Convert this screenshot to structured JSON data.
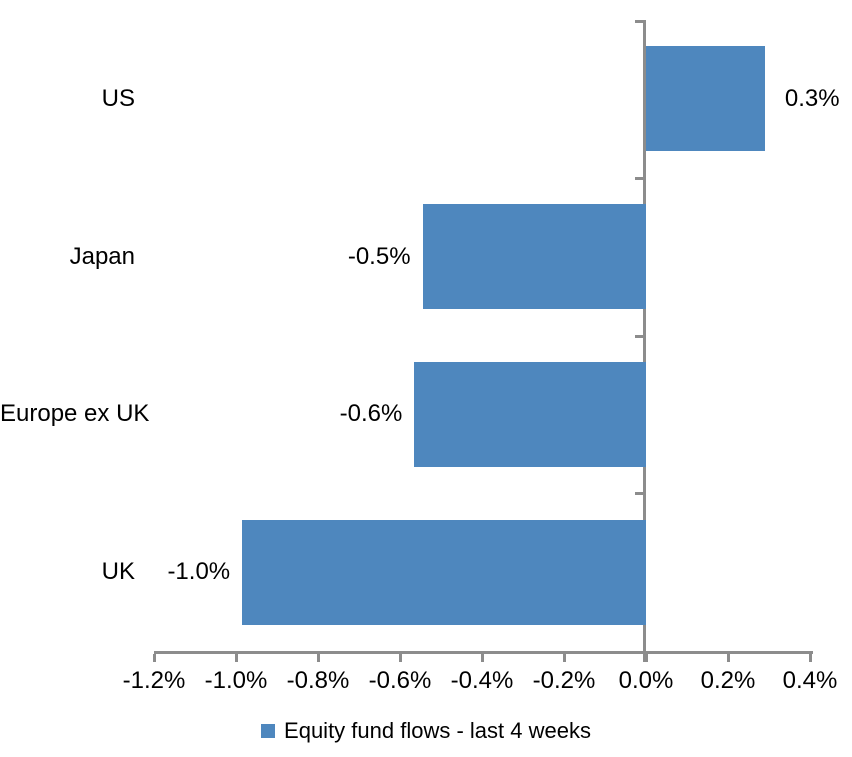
{
  "chart_data": {
    "type": "bar",
    "orientation": "horizontal",
    "title": "",
    "categories": [
      "US",
      "Japan",
      "Europe ex UK",
      "UK"
    ],
    "values": [
      0.3,
      -0.5,
      -0.6,
      -1.0
    ],
    "values_precise": [
      0.29,
      -0.545,
      -0.565,
      -0.985
    ],
    "data_labels": [
      "0.3%",
      "-0.5%",
      "-0.6%",
      "-1.0%"
    ],
    "unit": "%",
    "xlim": [
      -1.2,
      0.4
    ],
    "x_ticks": [
      -1.2,
      -1.0,
      -0.8,
      -0.6,
      -0.4,
      -0.2,
      0.0,
      0.2,
      0.4
    ],
    "x_tick_labels": [
      "-1.2%",
      "-1.0%",
      "-0.8%",
      "-0.6%",
      "-0.4%",
      "-0.2%",
      "0.0%",
      "0.2%",
      "0.4%"
    ],
    "grid": false,
    "legend_position": "bottom",
    "legend_entries": [
      "Equity fund flows - last 4 weeks"
    ]
  },
  "legend": {
    "label": "Equity fund flows - last 4 weeks",
    "marker": "legend-square-icon"
  },
  "colors": {
    "bar": "#4E87BE",
    "axis": "#8C8C8C",
    "text": "#000000",
    "background": "#FFFFFF"
  }
}
